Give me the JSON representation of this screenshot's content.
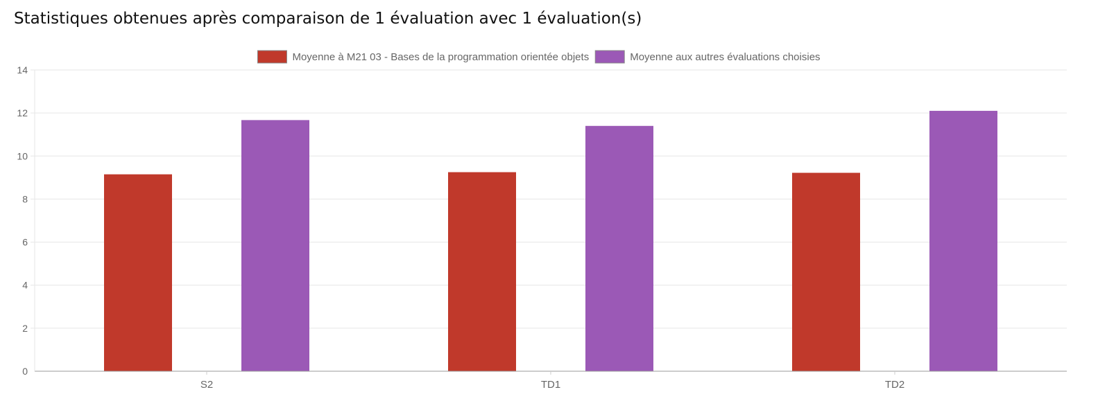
{
  "page": {
    "title": "Statistiques obtenues après comparaison de 1 évaluation avec 1 évaluation(s)"
  },
  "chart_data": {
    "type": "bar",
    "title": "",
    "xlabel": "",
    "ylabel": "",
    "categories": [
      "S2",
      "TD1",
      "TD2"
    ],
    "series": [
      {
        "name": "Moyenne à M21 03 - Bases de la programmation orientée objets",
        "color": "#c0392b",
        "values": [
          9.15,
          9.25,
          9.22
        ]
      },
      {
        "name": "Moyenne aux autres évaluations choisies",
        "color": "#9b59b6",
        "values": [
          11.67,
          11.4,
          12.1
        ]
      }
    ],
    "ylim": [
      0,
      14
    ],
    "yticks": [
      "0",
      "2",
      "4",
      "6",
      "8",
      "10",
      "12",
      "14"
    ],
    "grid": true,
    "legend_position": "top-center"
  }
}
